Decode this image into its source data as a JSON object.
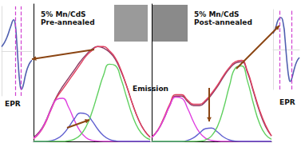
{
  "chart_data": [
    {
      "type": "line",
      "title": "5% Mn/CdS\nPre-annealed",
      "annotations": [
        "Emission"
      ],
      "x": [
        0,
        5,
        10,
        15,
        20,
        25,
        30,
        35,
        40,
        45,
        50,
        55,
        60,
        65,
        70,
        75,
        80,
        85,
        90,
        95,
        100
      ],
      "xlim": [
        0,
        100
      ],
      "ylim": [
        0,
        100
      ],
      "tick_labels": false,
      "grid": false,
      "series": [
        {
          "color": "#8b3a62",
          "values": [
            3,
            7,
            14,
            24,
            33,
            40,
            46,
            52,
            58,
            63,
            67,
            69,
            68,
            65,
            60,
            51,
            40,
            27,
            16,
            8,
            3
          ]
        },
        {
          "color": "#e04060",
          "values": [
            2,
            6,
            13,
            23,
            32,
            38,
            44,
            50,
            56,
            62,
            66,
            69,
            69,
            66,
            61,
            52,
            40,
            27,
            16,
            8,
            3
          ]
        },
        {
          "color": "#e040e0",
          "values": [
            2.3,
            6.3,
            13.7,
            23.2,
            30.6,
            31.4,
            25,
            15.5,
            7.5,
            2.8,
            0.8,
            0.2,
            0,
            0,
            0,
            0,
            0,
            0,
            0,
            0,
            0
          ]
        },
        {
          "color": "#6060d0",
          "values": [
            0,
            0,
            0,
            0.5,
            1.9,
            5,
            10.2,
            16.4,
            20.6,
            20,
            15.2,
            9,
            4.2,
            1.5,
            0.4,
            0,
            0,
            0,
            0,
            0,
            0
          ]
        },
        {
          "color": "#60d060",
          "values": [
            0,
            0,
            0,
            0,
            0,
            0,
            0.5,
            1.6,
            4.5,
            10.6,
            20.9,
            34.6,
            48.1,
            56.2,
            55.3,
            45.6,
            31.7,
            18.5,
            9.1,
            3.8,
            1.3
          ]
        }
      ]
    },
    {
      "type": "line",
      "title": "5% Mn/CdS\nPost-annealed",
      "x": [
        0,
        5,
        10,
        15,
        20,
        25,
        30,
        35,
        40,
        45,
        50,
        55,
        60,
        65,
        70,
        75,
        80,
        85,
        90,
        95,
        100
      ],
      "xlim": [
        0,
        100
      ],
      "ylim": [
        0,
        100
      ],
      "tick_labels": false,
      "grid": false,
      "series": [
        {
          "color": "#8b3a62",
          "values": [
            3,
            8,
            16,
            26,
            33,
            33,
            29,
            26,
            26,
            29,
            34,
            40,
            47,
            53,
            57,
            58,
            50,
            36,
            22,
            11,
            4
          ]
        },
        {
          "color": "#e04060",
          "values": [
            3,
            8,
            17,
            27,
            34,
            34,
            30,
            27,
            27,
            30,
            35,
            41,
            48,
            54,
            58,
            59,
            51,
            37,
            23,
            12,
            4
          ]
        },
        {
          "color": "#e040e0",
          "values": [
            2.9,
            7.8,
            16.1,
            25.8,
            32.3,
            31.5,
            24,
            14.1,
            6.5,
            2.3,
            0.7,
            0.2,
            0,
            0,
            0,
            0,
            0,
            0,
            0,
            0,
            0
          ]
        },
        {
          "color": "#6060d0",
          "values": [
            0,
            0,
            0,
            0,
            0,
            0,
            0.8,
            2.7,
            6.1,
            9.3,
            9.7,
            6.8,
            3.2,
            1,
            0.2,
            0,
            0,
            0,
            0,
            0,
            0
          ]
        },
        {
          "color": "#60d060",
          "values": [
            0,
            0,
            0,
            0,
            0,
            0,
            0,
            0,
            0.2,
            1.1,
            4,
            11.1,
            24,
            40.7,
            53.5,
            54.9,
            43.8,
            27.3,
            13.2,
            5,
            1.5
          ]
        }
      ]
    },
    {
      "type": "line",
      "title": "EPR",
      "x": [
        0,
        10,
        20,
        30,
        40,
        45,
        50,
        55,
        60,
        65,
        70,
        80,
        90,
        100
      ],
      "xlim": [
        0,
        100
      ],
      "ylim": [
        -100,
        100
      ],
      "tick_labels": false,
      "grid": false,
      "vlines": [
        45,
        65
      ],
      "series": [
        {
          "color": "#5060b0",
          "values": [
            10,
            20,
            35,
            55,
            70,
            60,
            20,
            -30,
            -70,
            -85,
            -80,
            -50,
            -30,
            -20
          ]
        }
      ]
    },
    {
      "type": "line",
      "title": "EPR",
      "x": [
        0,
        10,
        20,
        30,
        40,
        45,
        50,
        55,
        60,
        65,
        70,
        80,
        90,
        100
      ],
      "xlim": [
        0,
        100
      ],
      "ylim": [
        -100,
        100
      ],
      "tick_labels": false,
      "grid": false,
      "vlines": [
        25,
        70
      ],
      "series": [
        {
          "color": "#5060b0",
          "values": [
            40,
            55,
            75,
            80,
            60,
            30,
            -10,
            -45,
            -70,
            -80,
            -75,
            -50,
            -30,
            -20
          ]
        }
      ]
    }
  ]
}
